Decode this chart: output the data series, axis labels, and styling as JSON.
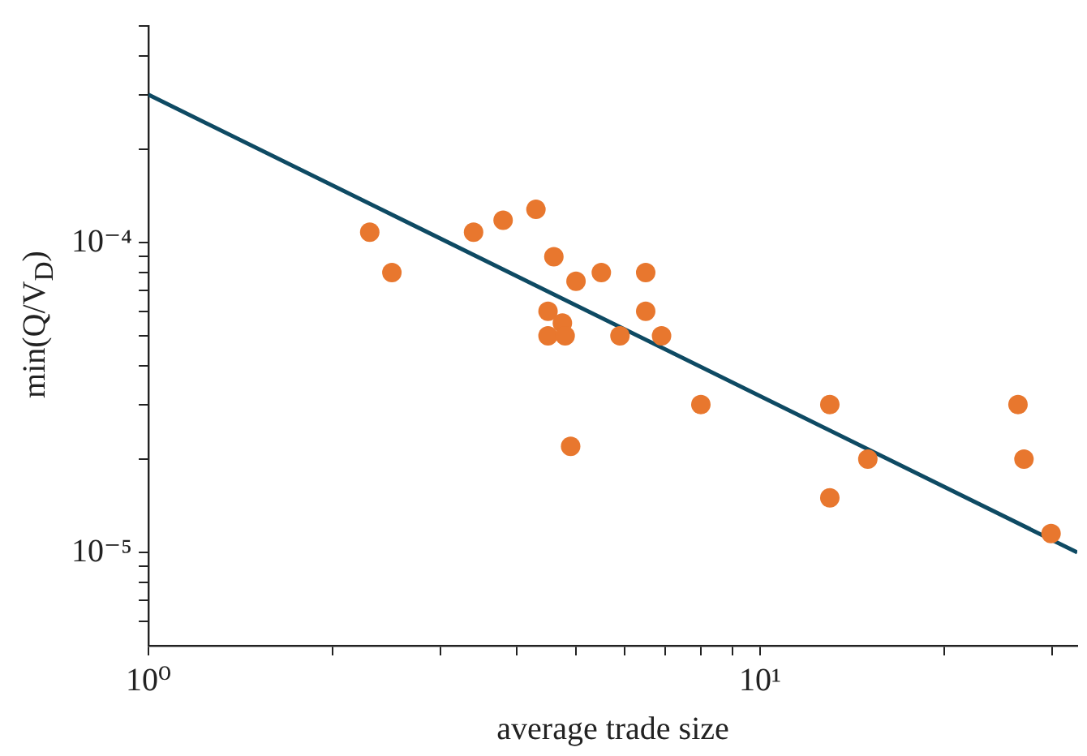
{
  "chart_data": {
    "type": "scatter",
    "xlabel": "average trade size",
    "ylabel": "min(Q/V$_{D}$)",
    "log": "xy",
    "xlim": [
      1,
      33
    ],
    "ylim": [
      5e-06,
      0.0005
    ],
    "xticks": [
      {
        "value": 1,
        "label": "10⁰"
      },
      {
        "value": 2,
        "label": null
      },
      {
        "value": 3,
        "label": null
      },
      {
        "value": 4,
        "label": null
      },
      {
        "value": 5,
        "label": null
      },
      {
        "value": 6,
        "label": null
      },
      {
        "value": 7,
        "label": null
      },
      {
        "value": 8,
        "label": null
      },
      {
        "value": 9,
        "label": null
      },
      {
        "value": 10,
        "label": "10¹"
      },
      {
        "value": 20,
        "label": null
      },
      {
        "value": 30,
        "label": null
      }
    ],
    "yticks": [
      {
        "value": 6e-06,
        "label": null
      },
      {
        "value": 7e-06,
        "label": null
      },
      {
        "value": 8e-06,
        "label": null
      },
      {
        "value": 9e-06,
        "label": null
      },
      {
        "value": 1e-05,
        "label": "10⁻⁵"
      },
      {
        "value": 2e-05,
        "label": null
      },
      {
        "value": 3e-05,
        "label": null
      },
      {
        "value": 4e-05,
        "label": null
      },
      {
        "value": 5e-05,
        "label": null
      },
      {
        "value": 6e-05,
        "label": null
      },
      {
        "value": 7e-05,
        "label": null
      },
      {
        "value": 8e-05,
        "label": null
      },
      {
        "value": 9e-05,
        "label": null
      },
      {
        "value": 0.0001,
        "label": "10⁻⁴"
      },
      {
        "value": 0.0002,
        "label": null
      },
      {
        "value": 0.0003,
        "label": null
      },
      {
        "value": 0.0004,
        "label": null
      },
      {
        "value": 0.0005,
        "label": null
      }
    ],
    "series": [
      {
        "type": "scatter",
        "marker": "circle",
        "color": "#e8772e",
        "x": [
          2.3,
          2.5,
          3.4,
          3.8,
          4.3,
          4.6,
          5.0,
          5.5,
          6.5,
          4.5,
          6.5,
          4.75,
          4.5,
          4.8,
          5.9,
          6.9,
          8.0,
          4.9,
          13,
          15,
          13,
          26.4,
          27,
          29.9
        ],
        "values": [
          0.000108,
          8e-05,
          0.000108,
          0.000118,
          0.000128,
          9e-05,
          7.5e-05,
          8e-05,
          8e-05,
          6e-05,
          6e-05,
          5.5e-05,
          5e-05,
          5e-05,
          5e-05,
          5e-05,
          3e-05,
          2.2e-05,
          3e-05,
          2e-05,
          1.5e-05,
          3e-05,
          2e-05,
          1.15e-05
        ]
      },
      {
        "type": "line",
        "marker": "none",
        "color": "#0e4a63",
        "x": [
          1,
          33
        ],
        "values": [
          0.0003,
          1e-05
        ]
      }
    ]
  }
}
